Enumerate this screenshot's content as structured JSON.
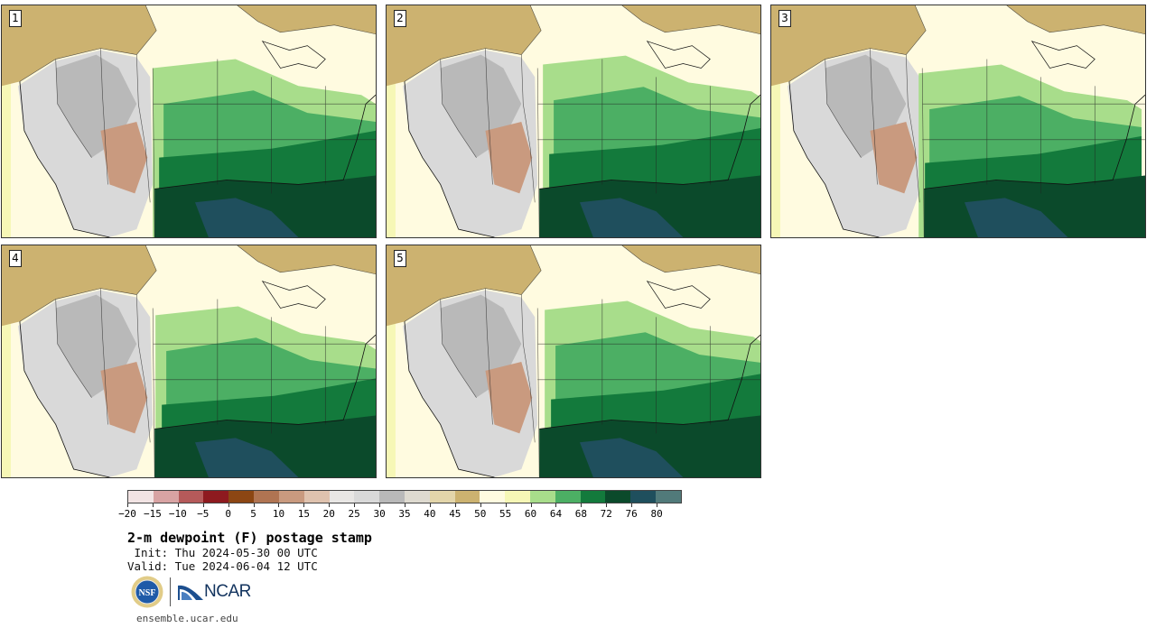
{
  "panels": [
    {
      "label": "1"
    },
    {
      "label": "2"
    },
    {
      "label": "3"
    },
    {
      "label": "4"
    },
    {
      "label": "5"
    }
  ],
  "colorbar": {
    "ticks": [
      "-20",
      "-15",
      "-10",
      "-5",
      "0",
      "5",
      "10",
      "15",
      "20",
      "25",
      "30",
      "35",
      "40",
      "45",
      "50",
      "55",
      "60",
      "64",
      "68",
      "72",
      "76",
      "80"
    ],
    "colors": [
      "#f2e4e4",
      "#d8a3a3",
      "#b55a5a",
      "#8e1a1f",
      "#8c4613",
      "#b07452",
      "#c99a7f",
      "#dfc2ae",
      "#e8e6e4",
      "#d9d9d9",
      "#b9b9b9",
      "#dedad0",
      "#e3d5aa",
      "#ccb270",
      "#fffbe0",
      "#f6f7b6",
      "#a8dd8b",
      "#4caf64",
      "#137a3c",
      "#0b4a2b",
      "#1f4f5d",
      "#517a7a"
    ]
  },
  "map_palette": {
    "ocean_cool": "#f6f7b6",
    "canada": "#ccb270",
    "plains": "#fffbe0",
    "high_terrain": "#b9b9b9",
    "desert": "#d9d9d9",
    "dry_brown": "#c99a7f",
    "humid_light": "#a8dd8b",
    "humid_mid": "#4caf64",
    "humid_dark": "#137a3c",
    "humid_darkest": "#0b4a2b",
    "gulf": "#1f4f5d"
  },
  "title": "2-m dewpoint (F) postage stamp",
  "init": " Init: Thu 2024-05-30 00 UTC",
  "valid": "Valid: Tue 2024-06-04 12 UTC",
  "logos": {
    "nsf": "NSF",
    "ncar": "NCAR"
  },
  "site": "ensemble.ucar.edu"
}
